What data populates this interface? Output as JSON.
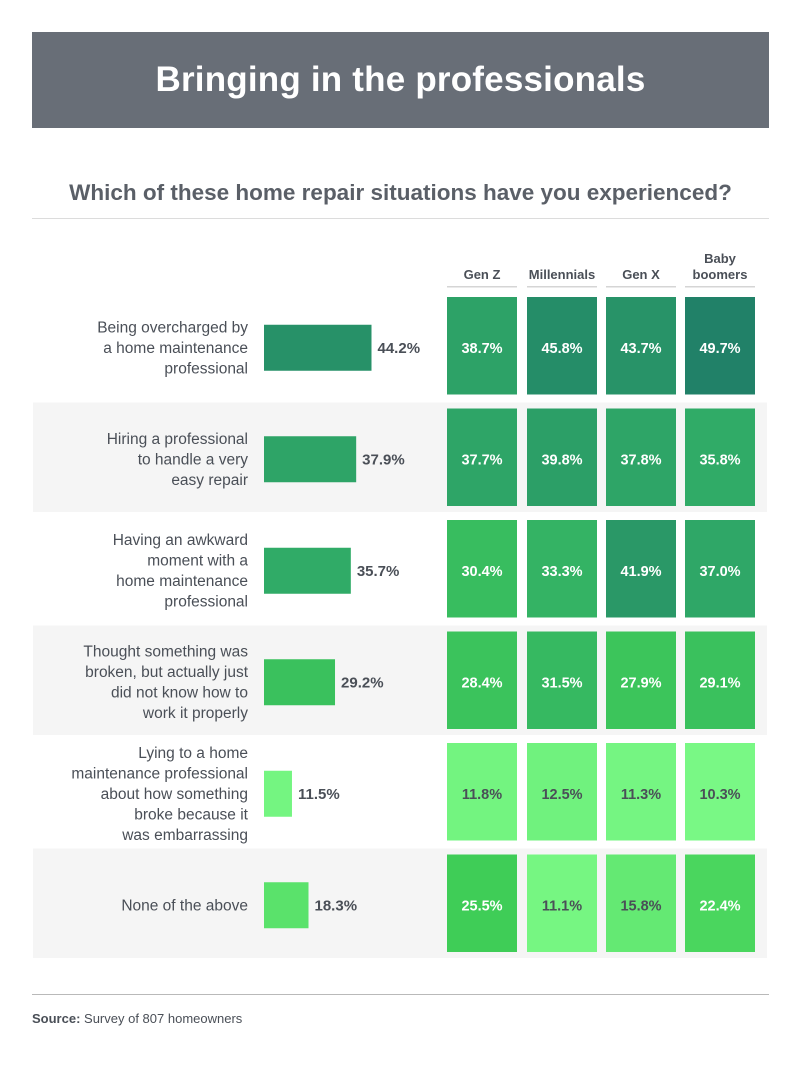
{
  "header": {
    "title": "Bringing in the professionals"
  },
  "question": "Which of these home repair situations have you experienced?",
  "footer": {
    "source_label": "Source:",
    "source_text": "Survey of 807 homeowners"
  },
  "chart_data": {
    "type": "bar",
    "title": "",
    "xlabel": "",
    "ylabel": "",
    "ylim": [
      0,
      100
    ],
    "grid": false,
    "categories": [
      [
        "Being overcharged by",
        "a home maintenance",
        "professional"
      ],
      [
        "Hiring a professional",
        "to handle a very",
        "easy repair"
      ],
      [
        "Having an awkward",
        "moment with a",
        "home maintenance",
        "professional"
      ],
      [
        "Thought something was",
        "broken, but actually just",
        "did not know how to",
        "work it properly"
      ],
      [
        "Lying to a home",
        "maintenance professional",
        "about how something",
        "broke because it",
        "was embarrassing"
      ],
      [
        "None of the above"
      ]
    ],
    "overall": [
      44.2,
      37.9,
      35.7,
      29.2,
      11.5,
      18.3
    ],
    "generation_columns": [
      "Gen Z",
      "Millennials",
      "Gen X",
      [
        "Baby",
        "boomers"
      ]
    ],
    "series": [
      {
        "name": "Gen Z",
        "values": [
          38.7,
          37.7,
          30.4,
          28.4,
          11.8,
          25.5
        ]
      },
      {
        "name": "Millennials",
        "values": [
          45.8,
          39.8,
          33.3,
          31.5,
          12.5,
          11.1
        ]
      },
      {
        "name": "Gen X",
        "values": [
          43.7,
          37.8,
          41.9,
          27.9,
          11.3,
          15.8
        ]
      },
      {
        "name": "Baby boomers",
        "values": [
          49.7,
          35.8,
          37.0,
          29.1,
          10.3,
          22.4
        ]
      }
    ],
    "value_suffix": "%"
  }
}
